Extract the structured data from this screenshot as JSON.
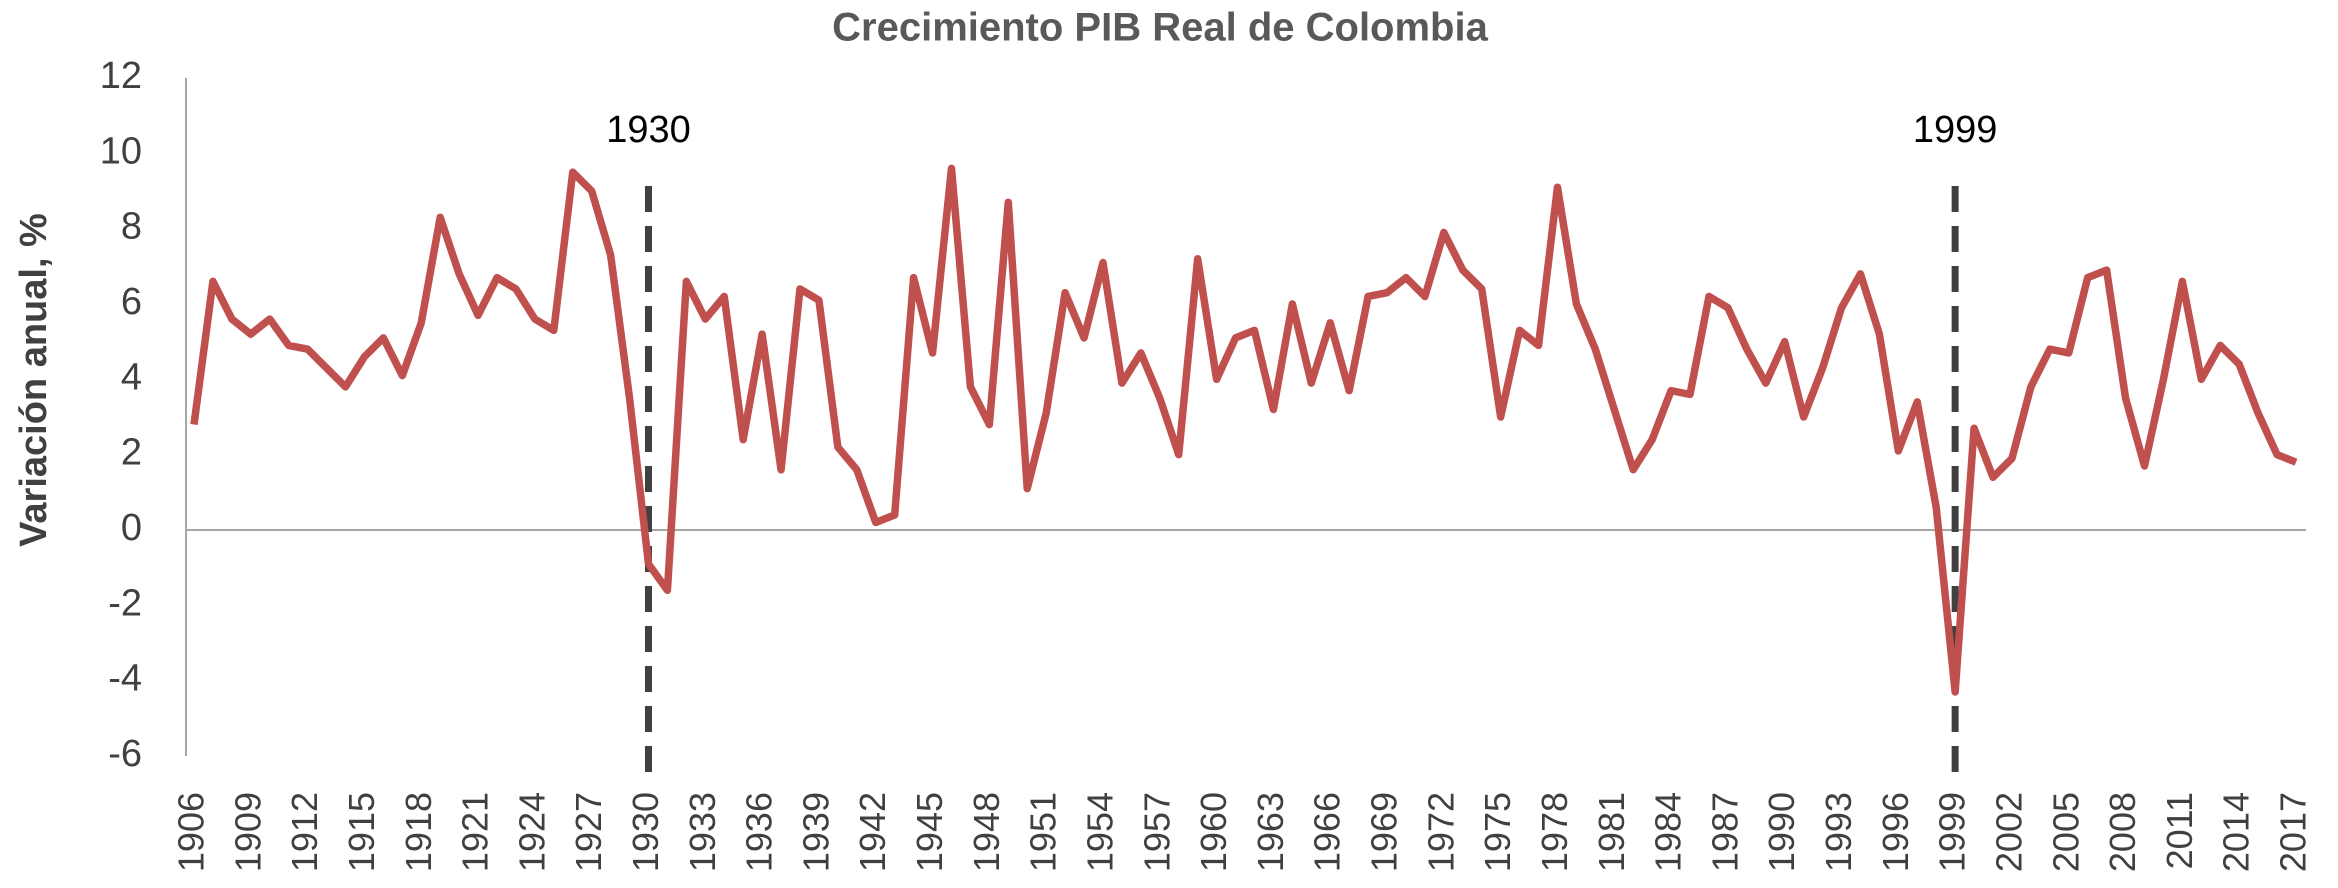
{
  "chart_data": {
    "type": "line",
    "title": "Crecimiento PIB Real de Colombia",
    "y_label": "Variación anual, %",
    "x": [
      1906,
      1907,
      1908,
      1909,
      1910,
      1911,
      1912,
      1913,
      1914,
      1915,
      1916,
      1917,
      1918,
      1919,
      1920,
      1921,
      1922,
      1923,
      1924,
      1925,
      1926,
      1927,
      1928,
      1929,
      1930,
      1931,
      1932,
      1933,
      1934,
      1935,
      1936,
      1937,
      1938,
      1939,
      1940,
      1941,
      1942,
      1943,
      1944,
      1945,
      1946,
      1947,
      1948,
      1949,
      1950,
      1951,
      1952,
      1953,
      1954,
      1955,
      1956,
      1957,
      1958,
      1959,
      1960,
      1961,
      1962,
      1963,
      1964,
      1965,
      1966,
      1967,
      1968,
      1969,
      1970,
      1971,
      1972,
      1973,
      1974,
      1975,
      1976,
      1977,
      1978,
      1979,
      1980,
      1981,
      1982,
      1983,
      1984,
      1985,
      1986,
      1987,
      1988,
      1989,
      1990,
      1991,
      1992,
      1993,
      1994,
      1995,
      1996,
      1997,
      1998,
      1999,
      2000,
      2001,
      2002,
      2003,
      2004,
      2005,
      2006,
      2007,
      2008,
      2009,
      2010,
      2011,
      2012,
      2013,
      2014,
      2015,
      2016,
      2017
    ],
    "series": [
      {
        "name": "PIB",
        "color": "#c0504d",
        "values": [
          2.8,
          6.6,
          5.6,
          5.2,
          5.6,
          4.9,
          4.8,
          4.3,
          3.8,
          4.6,
          5.1,
          4.1,
          5.5,
          8.3,
          6.8,
          5.7,
          6.7,
          6.4,
          5.6,
          5.3,
          9.5,
          9.0,
          7.3,
          3.5,
          -0.9,
          -1.6,
          6.6,
          5.6,
          6.2,
          2.4,
          5.2,
          1.6,
          6.4,
          6.1,
          2.2,
          1.6,
          0.2,
          0.4,
          6.7,
          4.7,
          9.6,
          3.8,
          2.8,
          8.7,
          1.1,
          3.1,
          6.3,
          5.1,
          7.1,
          3.9,
          4.7,
          3.5,
          2.0,
          7.2,
          4.0,
          5.1,
          5.3,
          3.2,
          6.0,
          3.9,
          5.5,
          3.7,
          6.2,
          6.3,
          6.7,
          6.2,
          7.9,
          6.9,
          6.4,
          3.0,
          5.3,
          4.9,
          9.1,
          6.0,
          4.8,
          3.2,
          1.6,
          2.4,
          3.7,
          3.6,
          6.2,
          5.9,
          4.8,
          3.9,
          5.0,
          3.0,
          4.3,
          5.9,
          6.8,
          5.2,
          2.1,
          3.4,
          0.6,
          -4.3,
          2.7,
          1.4,
          1.9,
          3.8,
          4.8,
          4.7,
          6.7,
          6.9,
          3.5,
          1.7,
          4.0,
          6.6,
          4.0,
          4.9,
          4.4,
          3.1,
          2.0,
          1.8
        ]
      }
    ],
    "xlim": [
      1906,
      2017
    ],
    "xticks": [
      1906,
      1909,
      1912,
      1915,
      1918,
      1921,
      1924,
      1927,
      1930,
      1933,
      1936,
      1939,
      1942,
      1945,
      1948,
      1951,
      1954,
      1957,
      1960,
      1963,
      1966,
      1969,
      1972,
      1975,
      1978,
      1981,
      1984,
      1987,
      1990,
      1993,
      1996,
      1999,
      2002,
      2005,
      2008,
      2011,
      2014,
      2017
    ],
    "ylim": [
      -6,
      12
    ],
    "yticks": [
      -6,
      -4,
      -2,
      0,
      2,
      4,
      6,
      8,
      10,
      12
    ],
    "grid": false,
    "annotations": [
      {
        "text": "1930",
        "x": 1930
      },
      {
        "text": "1999",
        "x": 1999
      }
    ]
  }
}
